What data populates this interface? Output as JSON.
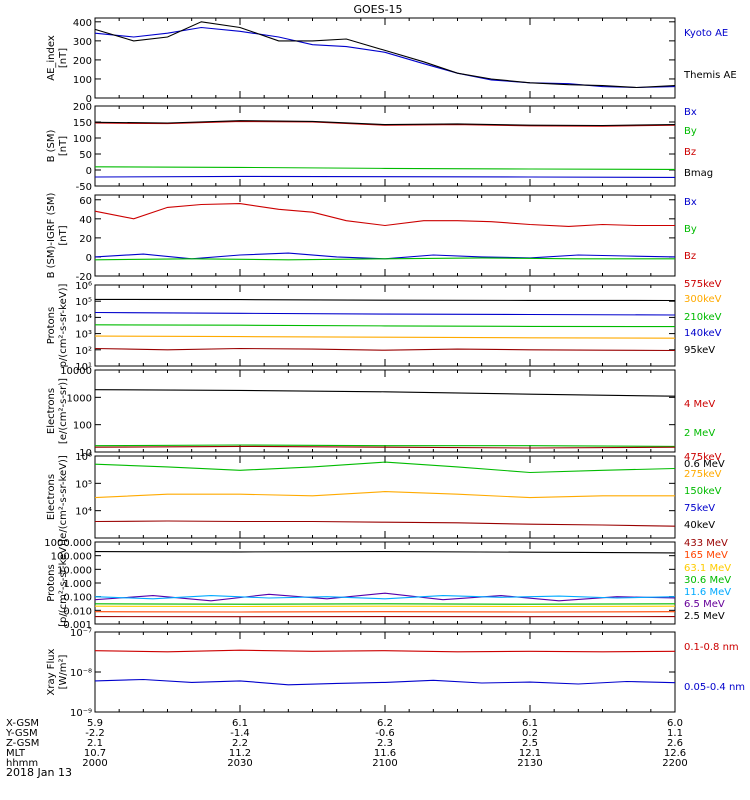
{
  "title": "GOES-15",
  "footer": {
    "rows": [
      {
        "label": "X-GSM",
        "values": [
          "5.9",
          "6.1",
          "6.2",
          "6.1",
          "6.0"
        ]
      },
      {
        "label": "Y-GSM",
        "values": [
          "-2.2",
          "-1.4",
          "-0.6",
          "0.2",
          "1.1"
        ]
      },
      {
        "label": "Z-GSM",
        "values": [
          "2.1",
          "2.2",
          "2.3",
          "2.5",
          "2.6"
        ]
      },
      {
        "label": "MLT",
        "values": [
          "10.7",
          "11.2",
          "11.6",
          "12.1",
          "12.6"
        ]
      },
      {
        "label": "hhmm",
        "values": [
          "2000",
          "2030",
          "2100",
          "2130",
          "2200"
        ]
      }
    ],
    "date": "2018 Jan 13"
  },
  "chart_data": [
    {
      "type": "line",
      "ylabel": [
        "AE_index",
        "[nT]"
      ],
      "scale": "linear",
      "ylim": [
        0,
        420
      ],
      "ticks": [
        {
          "v": 0,
          "l": "0"
        },
        {
          "v": 100,
          "l": "100"
        },
        {
          "v": 200,
          "l": "200"
        },
        {
          "v": 300,
          "l": "300"
        },
        {
          "v": 400,
          "l": "400"
        }
      ],
      "legend": [
        {
          "name": "Kyoto AE",
          "color": "#0000cc"
        },
        {
          "name": "Themis AE",
          "color": "#000000"
        }
      ],
      "series": [
        {
          "name": "Kyoto AE",
          "color": "#0000cc",
          "x": [
            0,
            8,
            15,
            22,
            30,
            38,
            45,
            52,
            60,
            68,
            75,
            82,
            90,
            98,
            105,
            112,
            120
          ],
          "y": [
            340,
            320,
            340,
            370,
            350,
            320,
            280,
            270,
            240,
            180,
            130,
            95,
            80,
            75,
            60,
            55,
            60
          ]
        },
        {
          "name": "Themis AE",
          "color": "#000000",
          "x": [
            0,
            8,
            15,
            22,
            30,
            38,
            45,
            52,
            60,
            68,
            75,
            82,
            90,
            98,
            105,
            112,
            120
          ],
          "y": [
            360,
            300,
            320,
            400,
            370,
            300,
            300,
            310,
            250,
            190,
            130,
            100,
            80,
            70,
            65,
            55,
            65
          ]
        }
      ]
    },
    {
      "type": "line",
      "ylabel": [
        "B (SM)",
        "[nT]"
      ],
      "scale": "linear",
      "ylim": [
        -50,
        200
      ],
      "ticks": [
        {
          "v": -50,
          "l": "-50"
        },
        {
          "v": 0,
          "l": "0"
        },
        {
          "v": 50,
          "l": "50"
        },
        {
          "v": 100,
          "l": "100"
        },
        {
          "v": 150,
          "l": "150"
        },
        {
          "v": 200,
          "l": "200"
        }
      ],
      "legend": [
        {
          "name": "Bx",
          "color": "#0000cc"
        },
        {
          "name": "By",
          "color": "#00bb00"
        },
        {
          "name": "Bz",
          "color": "#cc0000"
        },
        {
          "name": "Bmag",
          "color": "#000000"
        }
      ],
      "series": [
        {
          "name": "Bx",
          "color": "#0000cc",
          "x": [
            0,
            30,
            60,
            90,
            120
          ],
          "y": [
            -22,
            -20,
            -21,
            -22,
            -23
          ]
        },
        {
          "name": "By",
          "color": "#00bb00",
          "x": [
            0,
            30,
            60,
            90,
            120
          ],
          "y": [
            10,
            8,
            5,
            3,
            2
          ]
        },
        {
          "name": "Bz",
          "color": "#cc0000",
          "x": [
            0,
            15,
            30,
            45,
            60,
            75,
            90,
            105,
            120
          ],
          "y": [
            147,
            145,
            152,
            150,
            140,
            142,
            138,
            137,
            140
          ]
        },
        {
          "name": "Bmag",
          "color": "#000000",
          "x": [
            0,
            15,
            30,
            45,
            60,
            75,
            90,
            105,
            120
          ],
          "y": [
            149,
            147,
            154,
            152,
            142,
            144,
            140,
            139,
            142
          ]
        }
      ]
    },
    {
      "type": "line",
      "ylabel": [
        "B (SM)-IGRF (SM)",
        "[nT]"
      ],
      "scale": "linear",
      "ylim": [
        -20,
        65
      ],
      "ticks": [
        {
          "v": -20,
          "l": "-20"
        },
        {
          "v": 0,
          "l": "0"
        },
        {
          "v": 20,
          "l": "20"
        },
        {
          "v": 40,
          "l": "40"
        },
        {
          "v": 60,
          "l": "60"
        }
      ],
      "legend": [
        {
          "name": "Bx",
          "color": "#0000cc"
        },
        {
          "name": "By",
          "color": "#00bb00"
        },
        {
          "name": "Bz",
          "color": "#cc0000"
        }
      ],
      "series": [
        {
          "name": "Bx",
          "color": "#0000cc",
          "x": [
            0,
            10,
            20,
            30,
            40,
            50,
            60,
            70,
            80,
            90,
            100,
            110,
            120
          ],
          "y": [
            0,
            3,
            -2,
            2,
            4,
            0,
            -2,
            2,
            0,
            -1,
            2,
            1,
            0
          ]
        },
        {
          "name": "By",
          "color": "#00bb00",
          "x": [
            0,
            20,
            40,
            60,
            80,
            100,
            120
          ],
          "y": [
            -3,
            -2,
            -3,
            -2,
            -1,
            -2,
            -2
          ]
        },
        {
          "name": "Bz",
          "color": "#cc0000",
          "x": [
            0,
            8,
            15,
            22,
            30,
            38,
            45,
            52,
            60,
            68,
            75,
            82,
            90,
            98,
            105,
            112,
            120
          ],
          "y": [
            48,
            40,
            52,
            55,
            56,
            50,
            47,
            38,
            33,
            38,
            38,
            37,
            34,
            32,
            34,
            33,
            33
          ]
        }
      ]
    },
    {
      "type": "line",
      "ylabel": [
        "Protons",
        "p/(cm²-s-sr-keV)]"
      ],
      "scale": "log",
      "ylim": [
        10,
        1000000
      ],
      "ticks": [
        {
          "v": 10,
          "l": "10¹"
        },
        {
          "v": 100,
          "l": "10²"
        },
        {
          "v": 1000,
          "l": "10³"
        },
        {
          "v": 10000,
          "l": "10⁴"
        },
        {
          "v": 100000,
          "l": "10⁵"
        },
        {
          "v": 1000000,
          "l": "10⁶"
        }
      ],
      "legend": [
        {
          "name": "575keV",
          "color": "#cc0000"
        },
        {
          "name": "300keV",
          "color": "#ffaa00"
        },
        {
          "name": "210keV",
          "color": "#00bb00"
        },
        {
          "name": "140keV",
          "color": "#0000cc"
        },
        {
          "name": "95keV",
          "color": "#000000"
        }
      ],
      "series": [
        {
          "name": "95keV",
          "color": "#000000",
          "x": [
            0,
            30,
            60,
            90,
            120
          ],
          "y": [
            130000,
            125000,
            115000,
            112000,
            110000
          ]
        },
        {
          "name": "140keV",
          "color": "#0000cc",
          "x": [
            0,
            30,
            60,
            90,
            120
          ],
          "y": [
            20000,
            18000,
            16000,
            15000,
            14000
          ]
        },
        {
          "name": "210keV",
          "color": "#00bb00",
          "x": [
            0,
            30,
            60,
            90,
            120
          ],
          "y": [
            3500,
            3300,
            3000,
            2800,
            2700
          ]
        },
        {
          "name": "300keV",
          "color": "#ffaa00",
          "x": [
            0,
            30,
            60,
            90,
            120
          ],
          "y": [
            700,
            650,
            600,
            550,
            520
          ]
        },
        {
          "name": "575keV",
          "color": "#990000",
          "x": [
            0,
            15,
            30,
            45,
            60,
            75,
            90,
            105,
            120
          ],
          "y": [
            120,
            100,
            120,
            110,
            95,
            110,
            100,
            95,
            90
          ]
        }
      ]
    },
    {
      "type": "line",
      "ylabel": [
        "Electrons",
        "[e/(cm²-s-sr)]"
      ],
      "scale": "log",
      "ylim": [
        10,
        10000
      ],
      "ticks": [
        {
          "v": 10,
          "l": "10"
        },
        {
          "v": 100,
          "l": "100"
        },
        {
          "v": 1000,
          "l": "1000"
        },
        {
          "v": 10000,
          "l": "10000"
        }
      ],
      "legend": [
        {
          "name": "4 MeV",
          "color": "#cc0000"
        },
        {
          "name": "2 MeV",
          "color": "#00bb00"
        },
        {
          "name": "0.6 MeV",
          "color": "#000000"
        }
      ],
      "series": [
        {
          "name": "0.6 MeV",
          "color": "#000000",
          "x": [
            0,
            30,
            60,
            90,
            120
          ],
          "y": [
            1900,
            1800,
            1600,
            1300,
            1100
          ]
        },
        {
          "name": "2 MeV",
          "color": "#00bb00",
          "x": [
            0,
            30,
            60,
            90,
            120
          ],
          "y": [
            17,
            18,
            17,
            17,
            16
          ]
        },
        {
          "name": "4 MeV",
          "color": "#990000",
          "x": [
            0,
            30,
            60,
            90,
            120
          ],
          "y": [
            15,
            16,
            15,
            14,
            15
          ]
        }
      ]
    },
    {
      "type": "line",
      "ylabel": [
        "Electrons",
        "e/(cm²-s-sr-keV)]"
      ],
      "scale": "log",
      "ylim": [
        1000,
        1000000
      ],
      "ticks": [
        {
          "v": 10000,
          "l": "10⁴"
        },
        {
          "v": 100000,
          "l": "10⁵"
        },
        {
          "v": 1000000,
          "l": "10⁶"
        }
      ],
      "legend": [
        {
          "name": "475keV",
          "color": "#cc0000"
        },
        {
          "name": "275keV",
          "color": "#ffaa00"
        },
        {
          "name": "150keV",
          "color": "#00bb00"
        },
        {
          "name": "75keV",
          "color": "#0000cc"
        },
        {
          "name": "40keV",
          "color": "#000000"
        }
      ],
      "series": [
        {
          "name": "150keV",
          "color": "#00bb00",
          "x": [
            0,
            15,
            30,
            45,
            60,
            75,
            90,
            105,
            120
          ],
          "y": [
            500000,
            400000,
            300000,
            400000,
            600000,
            400000,
            250000,
            300000,
            350000
          ]
        },
        {
          "name": "275keV",
          "color": "#ffaa00",
          "x": [
            0,
            15,
            30,
            45,
            60,
            75,
            90,
            105,
            120
          ],
          "y": [
            30000,
            40000,
            40000,
            35000,
            50000,
            40000,
            30000,
            35000,
            35000
          ]
        },
        {
          "name": "475keV",
          "color": "#990000",
          "x": [
            0,
            15,
            30,
            45,
            60,
            75,
            90,
            105,
            120
          ],
          "y": [
            4000,
            4200,
            4000,
            4000,
            3800,
            3600,
            3200,
            3000,
            2700
          ]
        }
      ]
    },
    {
      "type": "line",
      "ylabel": [
        "Protons",
        "[p/(cm²-s-sr-keV)]"
      ],
      "scale": "log",
      "ylim": [
        0.001,
        1000
      ],
      "ticks": [
        {
          "v": 0.001,
          "l": "0.001"
        },
        {
          "v": 0.01,
          "l": "0.010"
        },
        {
          "v": 0.1,
          "l": "0.100"
        },
        {
          "v": 1,
          "l": "1.000"
        },
        {
          "v": 10,
          "l": "10.000"
        },
        {
          "v": 100,
          "l": "100.000"
        },
        {
          "v": 1000,
          "l": "1000.000"
        }
      ],
      "legend": [
        {
          "name": "433 MeV",
          "color": "#990000"
        },
        {
          "name": "165 MeV",
          "color": "#ff4400"
        },
        {
          "name": "63.1 MeV",
          "color": "#ffcc00"
        },
        {
          "name": "30.6 MeV",
          "color": "#00bb00"
        },
        {
          "name": "11.6 MeV",
          "color": "#00aaff"
        },
        {
          "name": "6.5 MeV",
          "color": "#660099"
        },
        {
          "name": "2.5 MeV",
          "color": "#000000"
        }
      ],
      "series": [
        {
          "name": "2.5 MeV",
          "color": "#000000",
          "x": [
            0,
            30,
            60,
            90,
            120
          ],
          "y": [
            200,
            190,
            200,
            180,
            160
          ]
        },
        {
          "name": "6.5 MeV",
          "color": "#5500aa",
          "x": [
            0,
            12,
            24,
            36,
            48,
            60,
            72,
            84,
            96,
            108,
            120
          ],
          "y": [
            0.06,
            0.12,
            0.05,
            0.15,
            0.07,
            0.18,
            0.06,
            0.12,
            0.05,
            0.1,
            0.08
          ]
        },
        {
          "name": "11.6 MeV",
          "color": "#00aaff",
          "x": [
            0,
            12,
            24,
            36,
            48,
            60,
            72,
            84,
            96,
            108,
            120
          ],
          "y": [
            0.1,
            0.07,
            0.12,
            0.08,
            0.1,
            0.07,
            0.12,
            0.09,
            0.11,
            0.08,
            0.1
          ]
        },
        {
          "name": "30.6 MeV",
          "color": "#00bb00",
          "x": [
            0,
            30,
            60,
            90,
            120
          ],
          "y": [
            0.03,
            0.028,
            0.03,
            0.028,
            0.03
          ]
        },
        {
          "name": "63.1 MeV",
          "color": "#ffcc00",
          "x": [
            0,
            30,
            60,
            90,
            120
          ],
          "y": [
            0.02,
            0.019,
            0.02,
            0.019,
            0.02
          ]
        },
        {
          "name": "165 MeV",
          "color": "#ff4400",
          "x": [
            0,
            30,
            60,
            90,
            120
          ],
          "y": [
            0.008,
            0.0075,
            0.008,
            0.0075,
            0.008
          ]
        },
        {
          "name": "433 MeV",
          "color": "#990000",
          "x": [
            0,
            30,
            60,
            90,
            120
          ],
          "y": [
            0.0035,
            0.0034,
            0.0035,
            0.0034,
            0.0035
          ]
        }
      ]
    },
    {
      "type": "line",
      "ylabel": [
        "Xray Flux",
        "[W/m²]"
      ],
      "scale": "log",
      "ylim": [
        1e-09,
        1e-07
      ],
      "ticks": [
        {
          "v": 1e-09,
          "l": "10⁻⁹"
        },
        {
          "v": 1e-08,
          "l": "10⁻⁸"
        },
        {
          "v": 1e-07,
          "l": "10⁻⁷"
        }
      ],
      "legend": [
        {
          "name": "0.1-0.8 nm",
          "color": "#cc0000"
        },
        {
          "name": "0.05-0.4 nm",
          "color": "#0000cc"
        }
      ],
      "series": [
        {
          "name": "0.1-0.8 nm",
          "color": "#cc0000",
          "x": [
            0,
            15,
            30,
            45,
            60,
            75,
            90,
            105,
            120
          ],
          "y": [
            3.4e-08,
            3.2e-08,
            3.5e-08,
            3.3e-08,
            3.4e-08,
            3.2e-08,
            3.3e-08,
            3.2e-08,
            3.3e-08
          ]
        },
        {
          "name": "0.05-0.4 nm",
          "color": "#0000cc",
          "x": [
            0,
            10,
            20,
            30,
            40,
            50,
            60,
            70,
            80,
            90,
            100,
            110,
            120
          ],
          "y": [
            6e-09,
            6.5e-09,
            5.5e-09,
            6e-09,
            4.8e-09,
            5.2e-09,
            5.5e-09,
            6.2e-09,
            5.3e-09,
            5.6e-09,
            5e-09,
            5.8e-09,
            5.4e-09
          ]
        }
      ]
    }
  ]
}
